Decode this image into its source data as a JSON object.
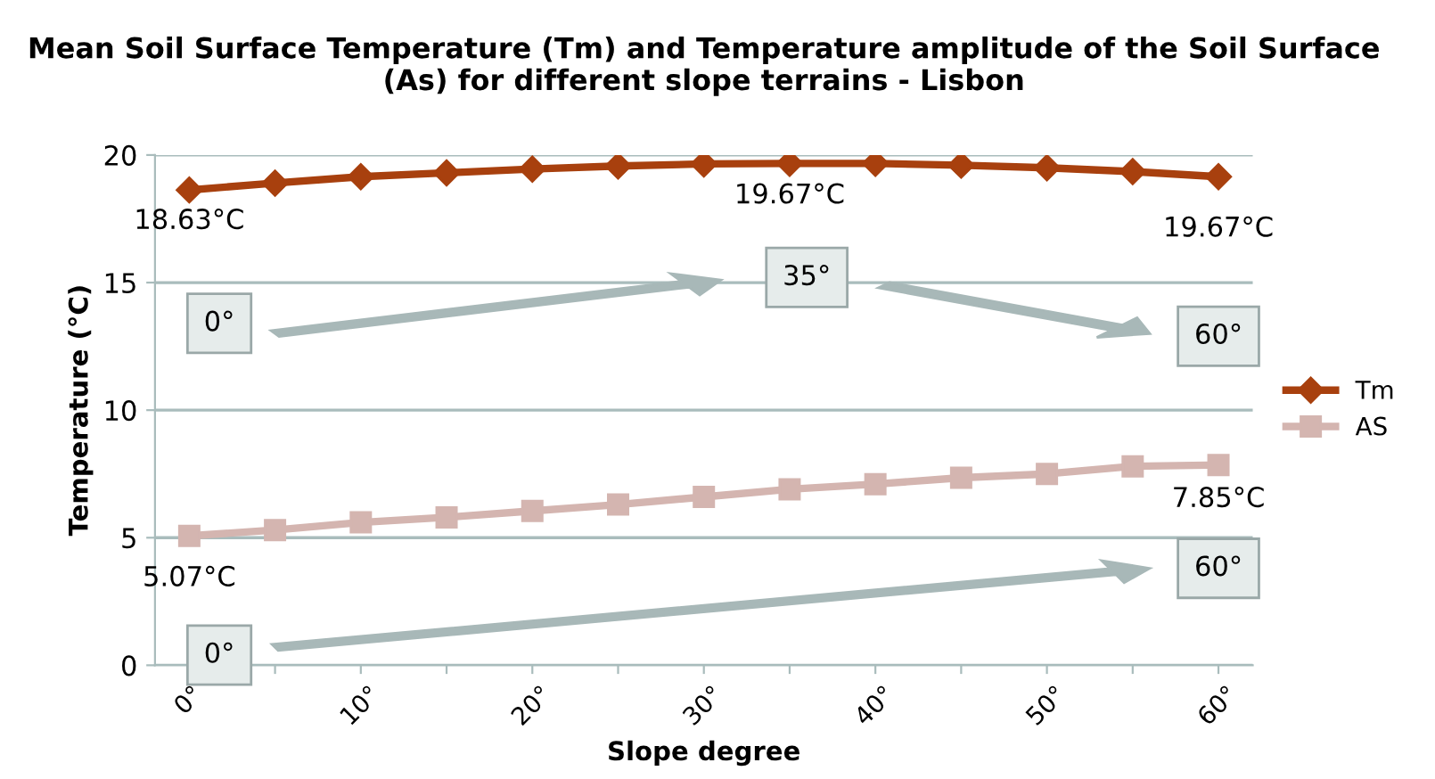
{
  "chart_data": {
    "type": "line",
    "title": "Mean Soil Surface Temperature (Tm) and Temperature amplitude of the Soil Surface (As) for different slope terrains - Lisbon",
    "xlabel": "Slope degree",
    "ylabel": "Temperature (°C)",
    "categories": [
      "0°",
      null,
      "10°",
      null,
      "20°",
      null,
      "30°",
      null,
      "40°",
      null,
      "50°",
      null,
      "60°"
    ],
    "series": [
      {
        "name": "Tm",
        "color": "#a8400e",
        "marker": "diamond",
        "values": [
          18.63,
          18.9,
          19.15,
          19.3,
          19.45,
          19.57,
          19.65,
          19.67,
          19.67,
          19.6,
          19.5,
          19.35,
          19.15
        ]
      },
      {
        "name": "AS",
        "color": "#d4b5b0",
        "marker": "square",
        "values": [
          5.07,
          5.3,
          5.6,
          5.8,
          6.05,
          6.3,
          6.6,
          6.9,
          7.1,
          7.35,
          7.5,
          7.8,
          7.85
        ]
      }
    ],
    "ylim": [
      0,
      20
    ],
    "yticks": [
      0,
      5,
      10,
      15,
      20
    ],
    "grid": "y",
    "legend": "right",
    "line_style": "solid",
    "annotations": [
      "18.63°C",
      "19.67°C",
      "19.67°C",
      "5.07°C",
      "7.85°C",
      "0°",
      "35°",
      "60°",
      "0°",
      "60°"
    ]
  }
}
